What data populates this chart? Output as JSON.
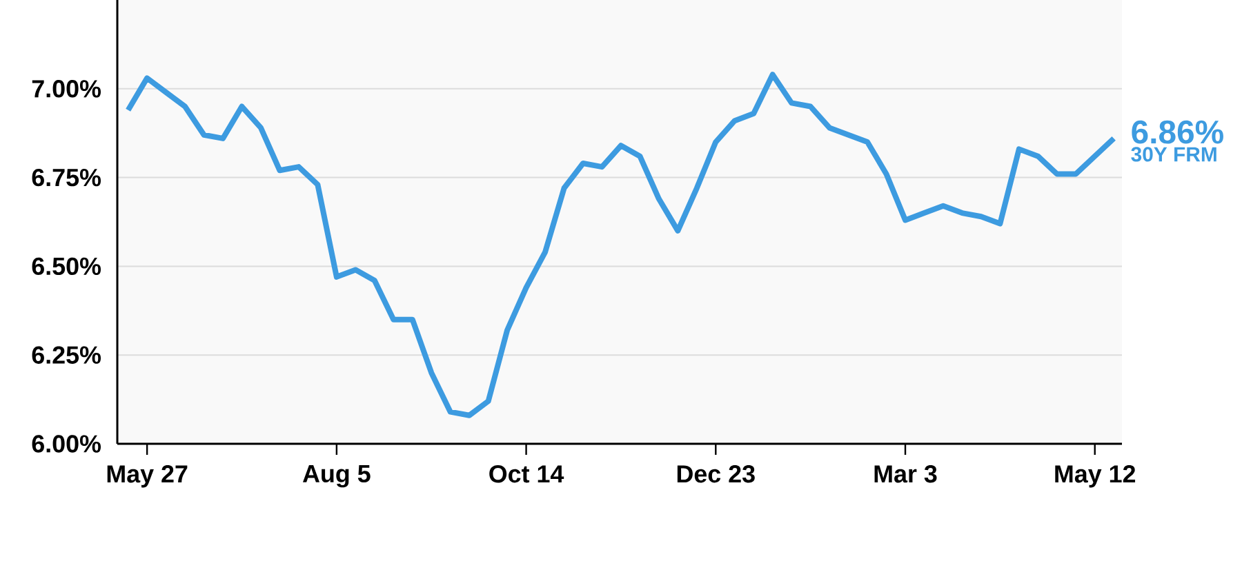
{
  "chart_data": {
    "type": "line",
    "categories": [
      null,
      "May 27",
      null,
      null,
      null,
      null,
      null,
      null,
      null,
      null,
      null,
      "Aug 5",
      null,
      null,
      null,
      null,
      null,
      null,
      null,
      null,
      null,
      "Oct 14",
      null,
      null,
      null,
      null,
      null,
      null,
      null,
      null,
      null,
      "Dec 23",
      null,
      null,
      null,
      null,
      null,
      null,
      null,
      null,
      null,
      "Mar 3",
      null,
      null,
      null,
      null,
      null,
      null,
      null,
      null,
      null,
      "May 12",
      null
    ],
    "series": [
      {
        "name": "30Y FRM",
        "color": "#3d9be0",
        "values": [
          6.94,
          7.03,
          6.99,
          6.95,
          6.87,
          6.86,
          6.95,
          6.89,
          6.77,
          6.78,
          6.73,
          6.47,
          6.49,
          6.46,
          6.35,
          6.35,
          6.2,
          6.09,
          6.08,
          6.12,
          6.32,
          6.44,
          6.54,
          6.72,
          6.79,
          6.78,
          6.84,
          6.81,
          6.69,
          6.6,
          6.72,
          6.85,
          6.91,
          6.93,
          7.04,
          6.96,
          6.95,
          6.89,
          6.87,
          6.85,
          6.76,
          6.63,
          6.65,
          6.67,
          6.65,
          6.64,
          6.62,
          6.83,
          6.81,
          6.76,
          6.76,
          6.81,
          6.86
        ]
      }
    ],
    "ylim": [
      6.0,
      7.25
    ],
    "yticks": [
      {
        "value": 6.0,
        "label": "6.00%"
      },
      {
        "value": 6.25,
        "label": "6.25%"
      },
      {
        "value": 6.5,
        "label": "6.50%"
      },
      {
        "value": 6.75,
        "label": "6.75%"
      },
      {
        "value": 7.0,
        "label": "7.00%"
      }
    ],
    "grid": "y",
    "legend": false,
    "marker": "none",
    "line_style": "solid",
    "annotations": [
      "6.86%"
    ]
  }
}
